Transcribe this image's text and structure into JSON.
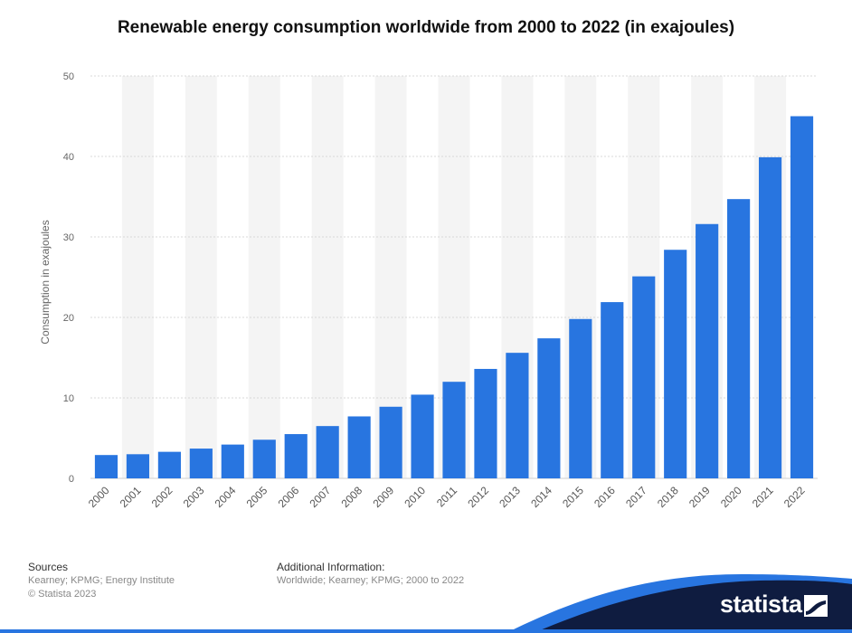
{
  "chart_data": {
    "type": "bar",
    "title": "Renewable energy consumption worldwide from 2000 to 2022 (in exajoules)",
    "ylabel": "Consumption in exajoules",
    "xlabel": "",
    "ylim": [
      0,
      50
    ],
    "yticks": [
      0,
      10,
      20,
      30,
      40,
      50
    ],
    "grid": true,
    "categories": [
      "2000",
      "2001",
      "2002",
      "2003",
      "2004",
      "2005",
      "2006",
      "2007",
      "2008",
      "2009",
      "2010",
      "2011",
      "2012",
      "2013",
      "2014",
      "2015",
      "2016",
      "2017",
      "2018",
      "2019",
      "2020",
      "2021",
      "2022"
    ],
    "values": [
      2.9,
      3.0,
      3.3,
      3.7,
      4.2,
      4.8,
      5.5,
      6.5,
      7.7,
      8.9,
      10.4,
      12.0,
      13.6,
      15.6,
      17.4,
      19.8,
      21.9,
      25.1,
      28.4,
      31.6,
      34.7,
      39.9,
      45.0
    ],
    "colors": {
      "bar": "#2875e0",
      "band": "#f4f4f4",
      "grid": "#d9d9d9"
    }
  },
  "footer": {
    "sources_heading": "Sources",
    "sources_line1": "Kearney; KPMG; Energy Institute",
    "sources_line2": "© Statista 2023",
    "additional_heading": "Additional Information:",
    "additional_text": "Worldwide; Kearney; KPMG; 2000 to 2022"
  },
  "brand": {
    "name": "statista",
    "color": "#0f1c40",
    "accent": "#2875e0"
  }
}
